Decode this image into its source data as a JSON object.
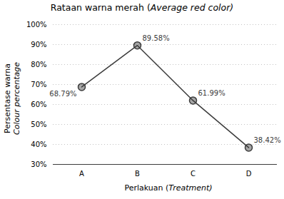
{
  "chart_data": {
    "type": "line",
    "title": "Rataan warna merah (Average red color)",
    "xlabel": "Perlakuan (Treatment)",
    "ylabel": "Persentase warna\nColour percentage",
    "categories": [
      "A",
      "B",
      "C",
      "D"
    ],
    "values": [
      68.79,
      89.58,
      61.99,
      38.42
    ],
    "value_labels": [
      "68.79%",
      "89.58%",
      "61.99%",
      "38.42%"
    ],
    "data_labels": true,
    "color": "#3c3c3c",
    "marker": "o",
    "ylim": [
      30,
      100
    ],
    "yticks": [
      {
        "value": 30,
        "label": "30%"
      },
      {
        "value": 40,
        "label": "40%"
      },
      {
        "value": 50,
        "label": "50%"
      },
      {
        "value": 60,
        "label": "60%"
      },
      {
        "value": 70,
        "label": "70%"
      },
      {
        "value": 80,
        "label": "80%"
      },
      {
        "value": 90,
        "label": "90%"
      },
      {
        "value": 100,
        "label": "100%"
      }
    ],
    "grid": true
  }
}
